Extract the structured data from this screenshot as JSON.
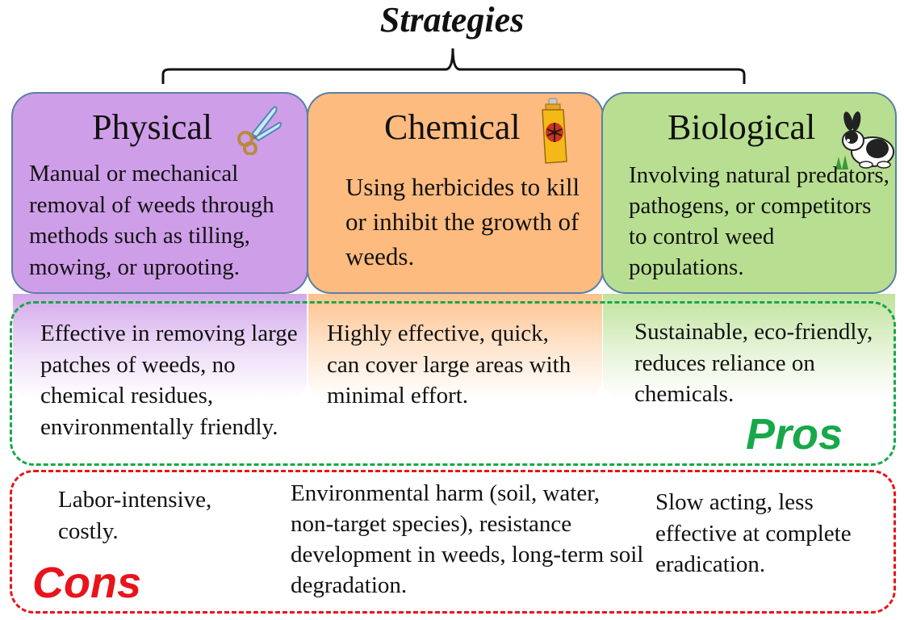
{
  "title": "Strategies",
  "colors": {
    "physical": "#cf9ee9",
    "chemical": "#fdbb80",
    "biological": "#b8df91",
    "card_border": "#5b7fa6",
    "pros": "#17a84a",
    "cons": "#e8141b"
  },
  "strategies": [
    {
      "name": "Physical",
      "icon": "scissors-icon",
      "description": "Manual or mechanical removal of weeds through methods such as tilling, mowing, or uprooting.",
      "pros": "Effective in removing large patches of weeds, no chemical residues, environmentally friendly.",
      "cons": "Labor-intensive, costly."
    },
    {
      "name": "Chemical",
      "icon": "spray-can-icon",
      "description": "Using herbicides to kill or inhibit the growth of weeds.",
      "pros": "Highly effective, quick, can cover large areas with minimal effort.",
      "cons": "Environmental harm (soil, water, non-target species), resistance development in weeds, long-term soil degradation."
    },
    {
      "name": "Biological",
      "icon": "rabbit-icon",
      "description": "Involving natural predators, pathogens, or competitors to control weed populations.",
      "pros": "Sustainable, eco-friendly, reduces reliance on chemicals.",
      "cons": "Slow acting, less effective at complete eradication."
    }
  ],
  "pros_label": "Pros",
  "cons_label": "Cons"
}
